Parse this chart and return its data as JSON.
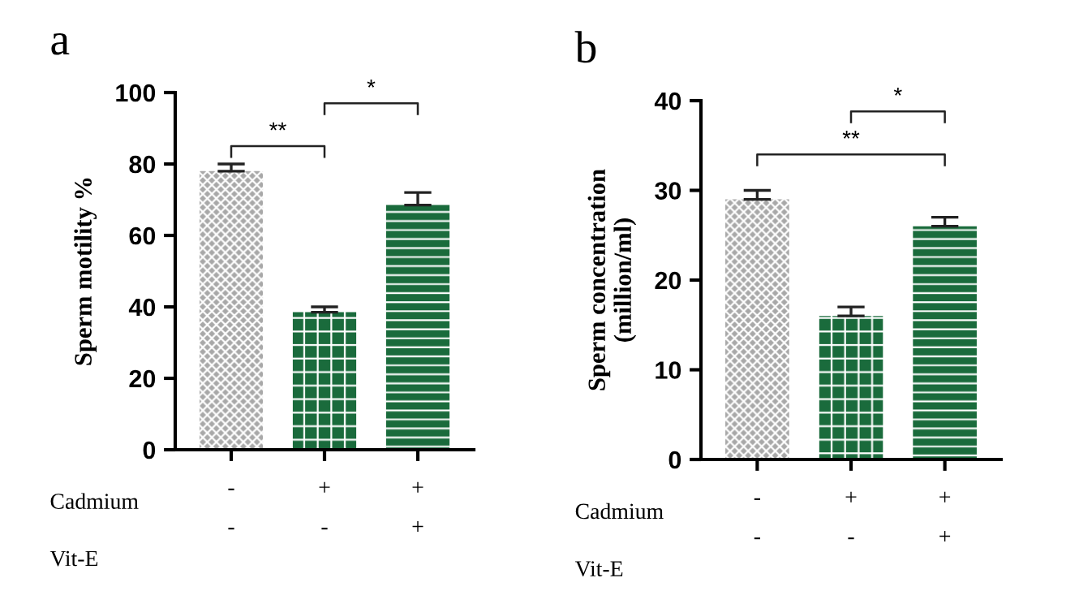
{
  "chart_data": [
    {
      "type": "bar",
      "title": "a",
      "ylabel": "Sperm motility %",
      "categories": [
        "-\n-",
        "+\n-",
        "+\n+"
      ],
      "values": [
        78,
        38.5,
        68.5
      ],
      "errors": [
        2,
        1.5,
        3.5
      ],
      "colors": [
        "#a8a8a8",
        "#1a6b3c",
        "#1a6b3c"
      ],
      "ylim": [
        0,
        100
      ],
      "yticks": [
        0,
        20,
        40,
        60,
        80,
        100
      ],
      "grid": false,
      "legend": false,
      "annotations": [
        "Cadmium",
        "Vit-E",
        "**",
        "*"
      ]
    },
    {
      "type": "bar",
      "title": "b",
      "ylabel": "Sperm concentration\n(million/ml)",
      "categories": [
        "-\n-",
        "+\n-",
        "+\n+"
      ],
      "values": [
        29,
        16,
        26
      ],
      "errors": [
        1,
        1,
        1
      ],
      "colors": [
        "#a8a8a8",
        "#1a6b3c",
        "#1a6b3c"
      ],
      "ylim": [
        0,
        40
      ],
      "yticks": [
        0,
        10,
        20,
        30,
        40
      ],
      "grid": false,
      "legend": false,
      "annotations": [
        "Cadmium",
        "Vit-E",
        "*",
        "**"
      ]
    }
  ]
}
